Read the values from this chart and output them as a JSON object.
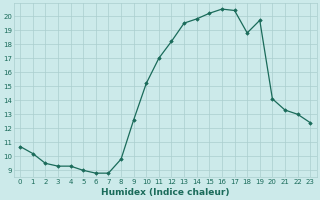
{
  "x": [
    0,
    1,
    2,
    3,
    4,
    5,
    6,
    7,
    8,
    9,
    10,
    11,
    12,
    13,
    14,
    15,
    16,
    17,
    18,
    19,
    20,
    21,
    22,
    23
  ],
  "y": [
    10.7,
    10.2,
    9.5,
    9.3,
    9.3,
    9.0,
    8.8,
    8.8,
    9.8,
    12.6,
    15.2,
    17.0,
    18.2,
    19.5,
    19.8,
    20.2,
    20.5,
    20.4,
    18.8,
    19.7,
    14.1,
    13.3,
    13.0,
    12.4
  ],
  "line_color": "#1a6b5a",
  "marker": "D",
  "marker_size": 1.8,
  "background_color": "#cceaea",
  "grid_color": "#aacece",
  "tick_color": "#1a6b5a",
  "label_color": "#1a6b5a",
  "xlabel": "Humidex (Indice chaleur)",
  "ylim": [
    8.5,
    20.9
  ],
  "xlim": [
    -0.5,
    23.5
  ],
  "yticks": [
    9,
    10,
    11,
    12,
    13,
    14,
    15,
    16,
    17,
    18,
    19,
    20
  ],
  "xticks": [
    0,
    1,
    2,
    3,
    4,
    5,
    6,
    7,
    8,
    9,
    10,
    11,
    12,
    13,
    14,
    15,
    16,
    17,
    18,
    19,
    20,
    21,
    22,
    23
  ],
  "tick_fontsize": 5.0,
  "xlabel_fontsize": 6.5,
  "linewidth": 0.9
}
